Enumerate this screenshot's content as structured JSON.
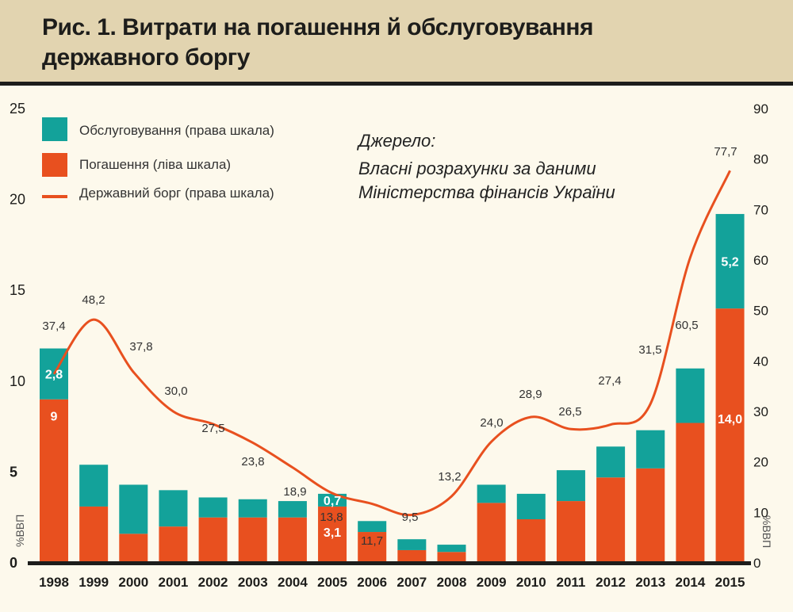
{
  "title": "Рис. 1. Витрати на погашення й обслуговування державного боргу",
  "legend": [
    "Обслуговування (права шкала)",
    "Погашення (ліва шкала)",
    "Державний борг (права шкала)"
  ],
  "source": [
    "Джерело:",
    "Власні розрахунки за даними",
    "Міністерства фінансів України"
  ],
  "colors": {
    "service": "#13a29a",
    "repayment": "#e8501f",
    "debt": "#e8501f"
  },
  "chart_data": {
    "type": "bar",
    "categories": [
      "1998",
      "1999",
      "2000",
      "2001",
      "2002",
      "2003",
      "2004",
      "2005",
      "2006",
      "2007",
      "2008",
      "2009",
      "2010",
      "2011",
      "2012",
      "2013",
      "2014",
      "2015"
    ],
    "series": [
      {
        "name": "Погашення (ліва шкала)",
        "type": "bar",
        "values": [
          9,
          3.1,
          1.6,
          2.0,
          2.5,
          2.5,
          2.5,
          3.1,
          1.7,
          0.7,
          0.6,
          3.3,
          2.4,
          3.4,
          4.7,
          5.2,
          7.7,
          14.0
        ]
      },
      {
        "name": "Обслуговування (права шкала)",
        "type": "bar",
        "stacked": true,
        "values": [
          2.8,
          2.3,
          2.7,
          2.0,
          1.1,
          1.0,
          0.9,
          0.7,
          0.6,
          0.6,
          0.4,
          1.0,
          1.4,
          1.7,
          1.7,
          2.1,
          3.0,
          5.2
        ]
      },
      {
        "name": "Державний борг (права шкала)",
        "type": "line",
        "axis": "right",
        "values": [
          37.4,
          48.2,
          37.8,
          30.0,
          27.5,
          23.8,
          18.9,
          13.8,
          11.7,
          9.5,
          13.2,
          24.0,
          28.9,
          26.5,
          27.4,
          31.5,
          60.5,
          77.7
        ]
      }
    ],
    "debt_labels": [
      "37,4",
      "48,2",
      "37,8",
      "30,0",
      "27,5",
      "23,8",
      "18,9",
      "13,8",
      "11,7",
      "9,5",
      "13,2",
      "24,0",
      "28,9",
      "26,5",
      "27,4",
      "31,5",
      "60,5",
      "77,7"
    ],
    "bar_labels": [
      {
        "year": "1998",
        "service": "2,8",
        "repayment": "9"
      },
      {
        "year": "2005",
        "service": "0,7",
        "repayment": "3,1"
      },
      {
        "year": "2015",
        "service": "5,2",
        "repayment": "14,0"
      }
    ],
    "left_axis": {
      "ticks": [
        "0",
        "5",
        "10",
        "15",
        "20",
        "25"
      ],
      "range": [
        0,
        25
      ],
      "label": "%ВВП"
    },
    "right_axis": {
      "ticks": [
        "0",
        "10",
        "20",
        "30",
        "40",
        "50",
        "60",
        "70",
        "80",
        "90"
      ],
      "range": [
        0,
        90
      ],
      "label": "%ВВП"
    }
  }
}
